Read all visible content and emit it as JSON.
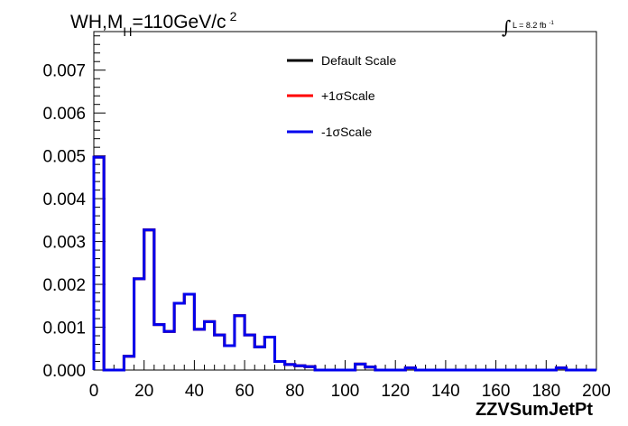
{
  "chart_data": {
    "type": "bar",
    "style": "step-histogram",
    "title": {
      "prefix": "WH,M",
      "subscript": "H",
      "middle": "=110GeV/c",
      "superscript": "2"
    },
    "luminosity": {
      "integral_symbol": "∫",
      "text": "L = 8.2 fb",
      "superscript": "-1"
    },
    "xlabel": "ZZVSumJetPt",
    "ylabel": "",
    "xlim": [
      0,
      200
    ],
    "ylim": [
      0,
      0.0079
    ],
    "x_ticks": [
      "0",
      "20",
      "40",
      "60",
      "80",
      "100",
      "120",
      "140",
      "160",
      "180",
      "200"
    ],
    "y_ticks": [
      "0.000",
      "0.001",
      "0.002",
      "0.003",
      "0.004",
      "0.005",
      "0.006",
      "0.007"
    ],
    "bin_width": 4,
    "bin_edges_start": 0,
    "legend_position": "top-center",
    "series": [
      {
        "name": "Default Scale",
        "color": "#000000",
        "values": [
          0.00497,
          0,
          0,
          0.00032,
          0.00213,
          0.00327,
          0.00106,
          0.0009,
          0.00156,
          0.00177,
          0.00095,
          0.00113,
          0.00082,
          0.00057,
          0.00127,
          0.00082,
          0.00054,
          0.00077,
          0.0002,
          0.00013,
          0.0001,
          8e-05,
          0,
          0,
          0,
          0,
          0.00014,
          7e-05,
          0,
          0,
          0,
          5e-05,
          0,
          0,
          0,
          0,
          0,
          0,
          0,
          0,
          0,
          0,
          0,
          0,
          0,
          0,
          5e-05,
          0,
          0,
          0
        ]
      },
      {
        "name": "+1σScale",
        "color": "#ff0000",
        "values": [
          0.00497,
          0,
          0,
          0.00032,
          0.00213,
          0.00327,
          0.00106,
          0.0009,
          0.00156,
          0.00177,
          0.00095,
          0.00113,
          0.00082,
          0.00057,
          0.00127,
          0.00082,
          0.00054,
          0.00077,
          0.0002,
          0.00013,
          0.0001,
          8e-05,
          0,
          0,
          0,
          0,
          0.00014,
          7e-05,
          0,
          0,
          0,
          5e-05,
          0,
          0,
          0,
          0,
          0,
          0,
          0,
          0,
          0,
          0,
          0,
          0,
          0,
          0,
          5e-05,
          0,
          0,
          0
        ]
      },
      {
        "name": "-1σScale",
        "color": "#0000ee",
        "values": [
          0.00497,
          0,
          0,
          0.00032,
          0.00213,
          0.00327,
          0.00106,
          0.0009,
          0.00156,
          0.00177,
          0.00095,
          0.00113,
          0.00082,
          0.00057,
          0.00127,
          0.00082,
          0.00054,
          0.00077,
          0.0002,
          0.00013,
          0.0001,
          8e-05,
          0,
          0,
          0,
          0,
          0.00014,
          7e-05,
          0,
          0,
          0,
          5e-05,
          0,
          0,
          0,
          0,
          0,
          0,
          0,
          0,
          0,
          0,
          0,
          0,
          0,
          0,
          5e-05,
          0,
          0,
          0
        ]
      }
    ]
  }
}
